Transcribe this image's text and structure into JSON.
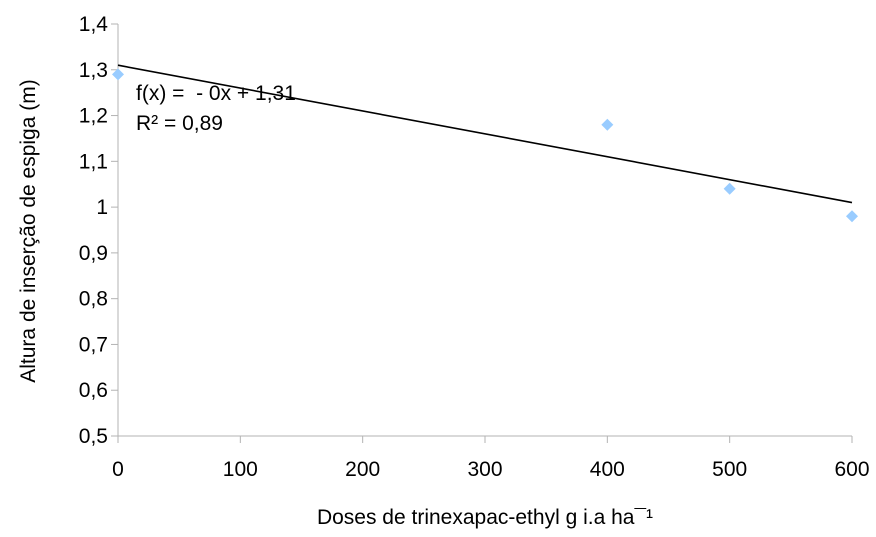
{
  "chart_data": {
    "type": "scatter",
    "title": "",
    "xlabel": "Doses de trinexapac-ethyl g i.a ha¯¹",
    "ylabel": "Altura de inserção de espiga (m)",
    "xlim": [
      0,
      600
    ],
    "ylim": [
      0.5,
      1.4
    ],
    "x_ticks": [
      0,
      100,
      200,
      300,
      400,
      500,
      600
    ],
    "x_tick_labels": [
      "0",
      "100",
      "200",
      "300",
      "400",
      "500",
      "600"
    ],
    "y_ticks": [
      0.5,
      0.6,
      0.7,
      0.8,
      0.9,
      1.0,
      1.1,
      1.2,
      1.3,
      1.4
    ],
    "y_tick_labels": [
      "0,5",
      "0,6",
      "0,7",
      "0,8",
      "0,9",
      "1",
      "1,1",
      "1,2",
      "1,3",
      "1,4"
    ],
    "grid": false,
    "legend": false,
    "series": [
      {
        "points": [
          {
            "x": 0,
            "y": 1.29
          },
          {
            "x": 400,
            "y": 1.18
          },
          {
            "x": 500,
            "y": 1.04
          },
          {
            "x": 600,
            "y": 0.98
          }
        ],
        "color": "#99ccff",
        "marker": "diamond"
      }
    ],
    "trendline": {
      "type": "linear",
      "x_range": [
        0,
        600
      ],
      "y_start": 1.31,
      "y_end": 1.01,
      "color": "#000000",
      "equation": "f(x) =  - 0x + 1,31",
      "r_squared": "R² = 0,89"
    }
  }
}
